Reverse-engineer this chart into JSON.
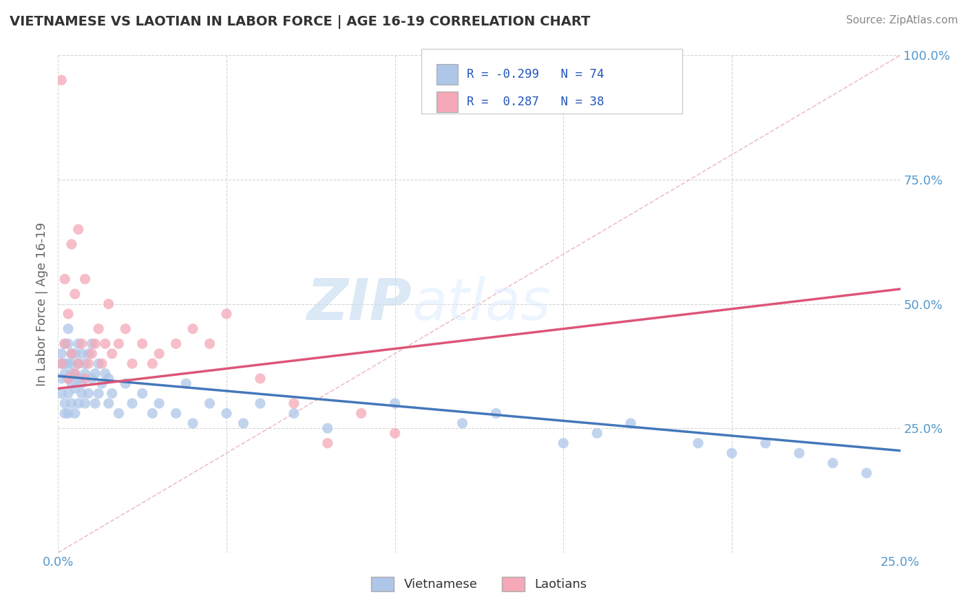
{
  "title": "VIETNAMESE VS LAOTIAN IN LABOR FORCE | AGE 16-19 CORRELATION CHART",
  "source": "Source: ZipAtlas.com",
  "ylabel": "In Labor Force | Age 16-19",
  "xlim": [
    0.0,
    0.25
  ],
  "ylim": [
    0.0,
    1.0
  ],
  "background_color": "#ffffff",
  "grid_color": "#cccccc",
  "viet_color": "#aec6e8",
  "laot_color": "#f4a8b8",
  "viet_line_color": "#4477bb",
  "laot_line_color": "#dd5577",
  "diag_line_color": "#e8b0b8",
  "viet_r": -0.299,
  "laot_r": 0.287,
  "viet_n": 74,
  "laot_n": 38,
  "viet_intercept": 0.355,
  "viet_slope": -0.6,
  "laot_intercept": 0.33,
  "laot_slope": 0.8,
  "viet_x": [
    0.001,
    0.001,
    0.001,
    0.001,
    0.002,
    0.002,
    0.002,
    0.002,
    0.002,
    0.003,
    0.003,
    0.003,
    0.003,
    0.003,
    0.003,
    0.004,
    0.004,
    0.004,
    0.004,
    0.004,
    0.005,
    0.005,
    0.005,
    0.005,
    0.006,
    0.006,
    0.006,
    0.006,
    0.007,
    0.007,
    0.007,
    0.008,
    0.008,
    0.008,
    0.009,
    0.009,
    0.01,
    0.01,
    0.011,
    0.011,
    0.012,
    0.012,
    0.013,
    0.014,
    0.015,
    0.015,
    0.016,
    0.018,
    0.02,
    0.022,
    0.025,
    0.028,
    0.03,
    0.035,
    0.038,
    0.04,
    0.045,
    0.05,
    0.055,
    0.06,
    0.07,
    0.08,
    0.1,
    0.12,
    0.13,
    0.15,
    0.16,
    0.17,
    0.19,
    0.2,
    0.21,
    0.22,
    0.23,
    0.24
  ],
  "viet_y": [
    0.38,
    0.35,
    0.4,
    0.32,
    0.42,
    0.36,
    0.3,
    0.38,
    0.28,
    0.35,
    0.42,
    0.32,
    0.38,
    0.45,
    0.28,
    0.36,
    0.4,
    0.3,
    0.34,
    0.38,
    0.33,
    0.4,
    0.36,
    0.28,
    0.35,
    0.42,
    0.3,
    0.38,
    0.34,
    0.4,
    0.32,
    0.38,
    0.36,
    0.3,
    0.4,
    0.32,
    0.35,
    0.42,
    0.36,
    0.3,
    0.38,
    0.32,
    0.34,
    0.36,
    0.35,
    0.3,
    0.32,
    0.28,
    0.34,
    0.3,
    0.32,
    0.28,
    0.3,
    0.28,
    0.34,
    0.26,
    0.3,
    0.28,
    0.26,
    0.3,
    0.28,
    0.25,
    0.3,
    0.26,
    0.28,
    0.22,
    0.24,
    0.26,
    0.22,
    0.2,
    0.22,
    0.2,
    0.18,
    0.16
  ],
  "laot_x": [
    0.001,
    0.001,
    0.002,
    0.002,
    0.003,
    0.003,
    0.004,
    0.004,
    0.005,
    0.005,
    0.006,
    0.006,
    0.007,
    0.008,
    0.008,
    0.009,
    0.01,
    0.011,
    0.012,
    0.013,
    0.014,
    0.015,
    0.016,
    0.018,
    0.02,
    0.022,
    0.025,
    0.028,
    0.03,
    0.035,
    0.04,
    0.045,
    0.05,
    0.06,
    0.07,
    0.08,
    0.09,
    0.1
  ],
  "laot_y": [
    0.38,
    0.95,
    0.42,
    0.55,
    0.35,
    0.48,
    0.4,
    0.62,
    0.36,
    0.52,
    0.38,
    0.65,
    0.42,
    0.35,
    0.55,
    0.38,
    0.4,
    0.42,
    0.45,
    0.38,
    0.42,
    0.5,
    0.4,
    0.42,
    0.45,
    0.38,
    0.42,
    0.38,
    0.4,
    0.42,
    0.45,
    0.42,
    0.48,
    0.35,
    0.3,
    0.22,
    0.28,
    0.24
  ]
}
